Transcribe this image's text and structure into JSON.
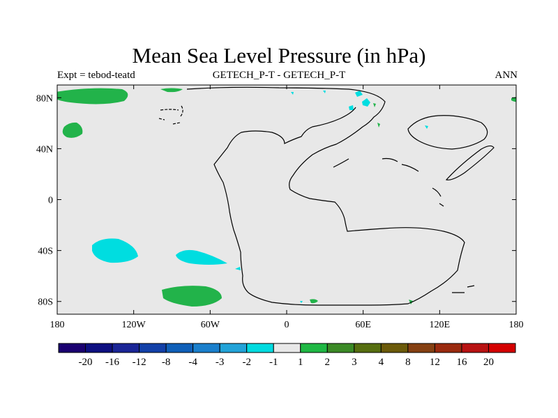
{
  "title": "Mean Sea Level Pressure (in hPa)",
  "subtitle_left": "Expt = tebod-teatd",
  "subtitle_center": "GETECH_P-T - GETECH_P-T",
  "subtitle_right": "ANN",
  "axes": {
    "x_ticks": [
      "180",
      "120W",
      "60W",
      "0",
      "60E",
      "120E",
      "180"
    ],
    "y_ticks": [
      "80N",
      "40N",
      "0",
      "40S",
      "80S"
    ]
  },
  "colorbar": {
    "colors": [
      "#1a0070",
      "#0d0f80",
      "#1a2596",
      "#1240a8",
      "#0f5fb8",
      "#1a7fcc",
      "#22a3d8",
      "#00dbe0",
      "#e8e8e8",
      "#1fb844",
      "#3b8a26",
      "#566e10",
      "#6b5a0a",
      "#854012",
      "#9a2a0e",
      "#b81212",
      "#d40000"
    ],
    "labels": [
      "-20",
      "-16",
      "-12",
      "-8",
      "-4",
      "-3",
      "-2",
      "-1",
      "1",
      "2",
      "3",
      "4",
      "8",
      "12",
      "16",
      "20"
    ]
  },
  "map": {
    "background_color": "#e8e8e8",
    "positive_color": "#22b34a",
    "negative_color": "#00dde0"
  }
}
